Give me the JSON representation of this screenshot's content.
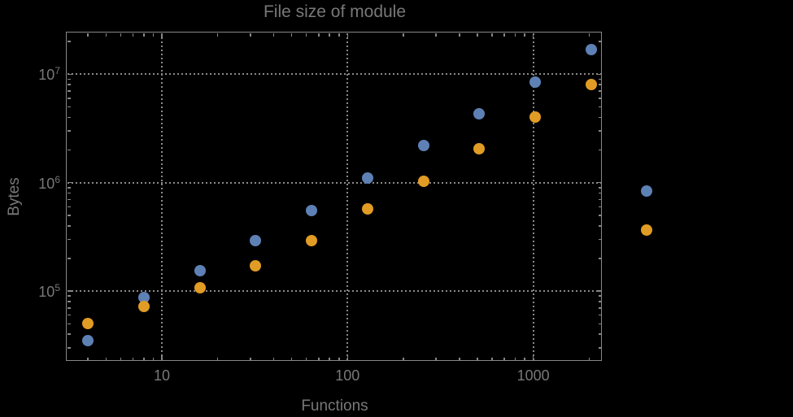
{
  "title": "File size of module",
  "colors": {
    "background": "#000000",
    "text": "#787878",
    "frame": "#878787",
    "grid": "#8a8a8a",
    "series1": "#5e81b5",
    "series2": "#e09c24"
  },
  "axes": {
    "x": {
      "label": "Functions",
      "scale": "log",
      "ticks": [
        {
          "value": 10,
          "label": "10"
        },
        {
          "value": 100,
          "label": "100"
        },
        {
          "value": 1000,
          "label": "1000"
        }
      ]
    },
    "y": {
      "label": "Bytes",
      "scale": "log",
      "ticks": [
        {
          "value": 100000,
          "base": "10",
          "exp": "5"
        },
        {
          "value": 1000000,
          "base": "10",
          "exp": "6"
        },
        {
          "value": 10000000,
          "base": "10",
          "exp": "7"
        }
      ]
    }
  },
  "chart_data": {
    "type": "scatter",
    "title": "File size of module",
    "xlabel": "Functions",
    "ylabel": "Bytes",
    "x_scale": "log",
    "y_scale": "log",
    "grid": "dotted",
    "legend": false,
    "marker_size_px": 14,
    "xlim": [
      3.1,
      2360
    ],
    "ylim": [
      23000,
      24000000
    ],
    "x": [
      4,
      8,
      16,
      32,
      64,
      128,
      256,
      512,
      1024,
      2048,
      4096
    ],
    "series": [
      {
        "name": "series-1-blue",
        "color": "#5e81b5",
        "values": [
          35000,
          88000,
          153000,
          290000,
          557000,
          1110000,
          2200000,
          4300000,
          8400000,
          16900000,
          830000
        ]
      },
      {
        "name": "series-2-orange",
        "color": "#e09c24",
        "values": [
          50000,
          72000,
          107000,
          171000,
          292000,
          570000,
          1030000,
          2060000,
          4050000,
          8100000,
          365000
        ]
      }
    ]
  }
}
